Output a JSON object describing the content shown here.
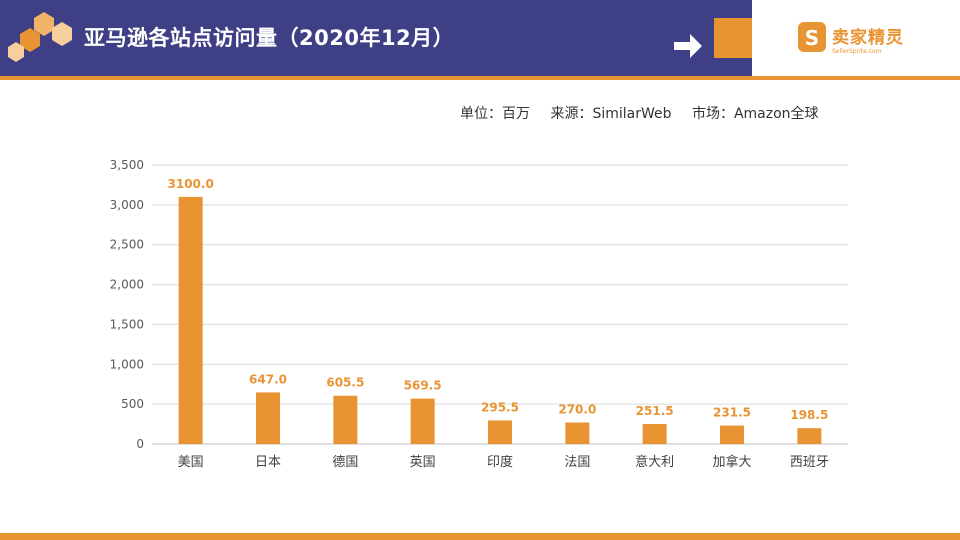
{
  "header": {
    "title": "亚马逊各站点访问量（2020年12月）",
    "logo_text": "卖家精灵",
    "logo_sub": "SellerSprite.com"
  },
  "meta": {
    "unit": "单位：百万",
    "source": "来源：SimilarWeb",
    "market": "市场：Amazon全球"
  },
  "colors": {
    "header_bg": "#3f3f86",
    "accent": "#e99433",
    "bar": "#e99433",
    "grid": "#d9d9d9",
    "axis_text": "#595959"
  },
  "chart_data": {
    "type": "bar",
    "categories": [
      "美国",
      "日本",
      "德国",
      "英国",
      "印度",
      "法国",
      "意大利",
      "加拿大",
      "西班牙"
    ],
    "values": [
      3100.0,
      647.0,
      605.5,
      569.5,
      295.5,
      270.0,
      251.5,
      231.5,
      198.5
    ],
    "data_labels": [
      "3100.0",
      "647.0",
      "605.5",
      "569.5",
      "295.5",
      "270.0",
      "251.5",
      "231.5",
      "198.5"
    ],
    "yticks": [
      "0",
      "500",
      "1,000",
      "1,500",
      "2,000",
      "2,500",
      "3,000",
      "3,500"
    ],
    "ylim": [
      0,
      3500
    ],
    "grid": true,
    "legend": "none",
    "title": "",
    "xlabel": "",
    "ylabel": ""
  }
}
